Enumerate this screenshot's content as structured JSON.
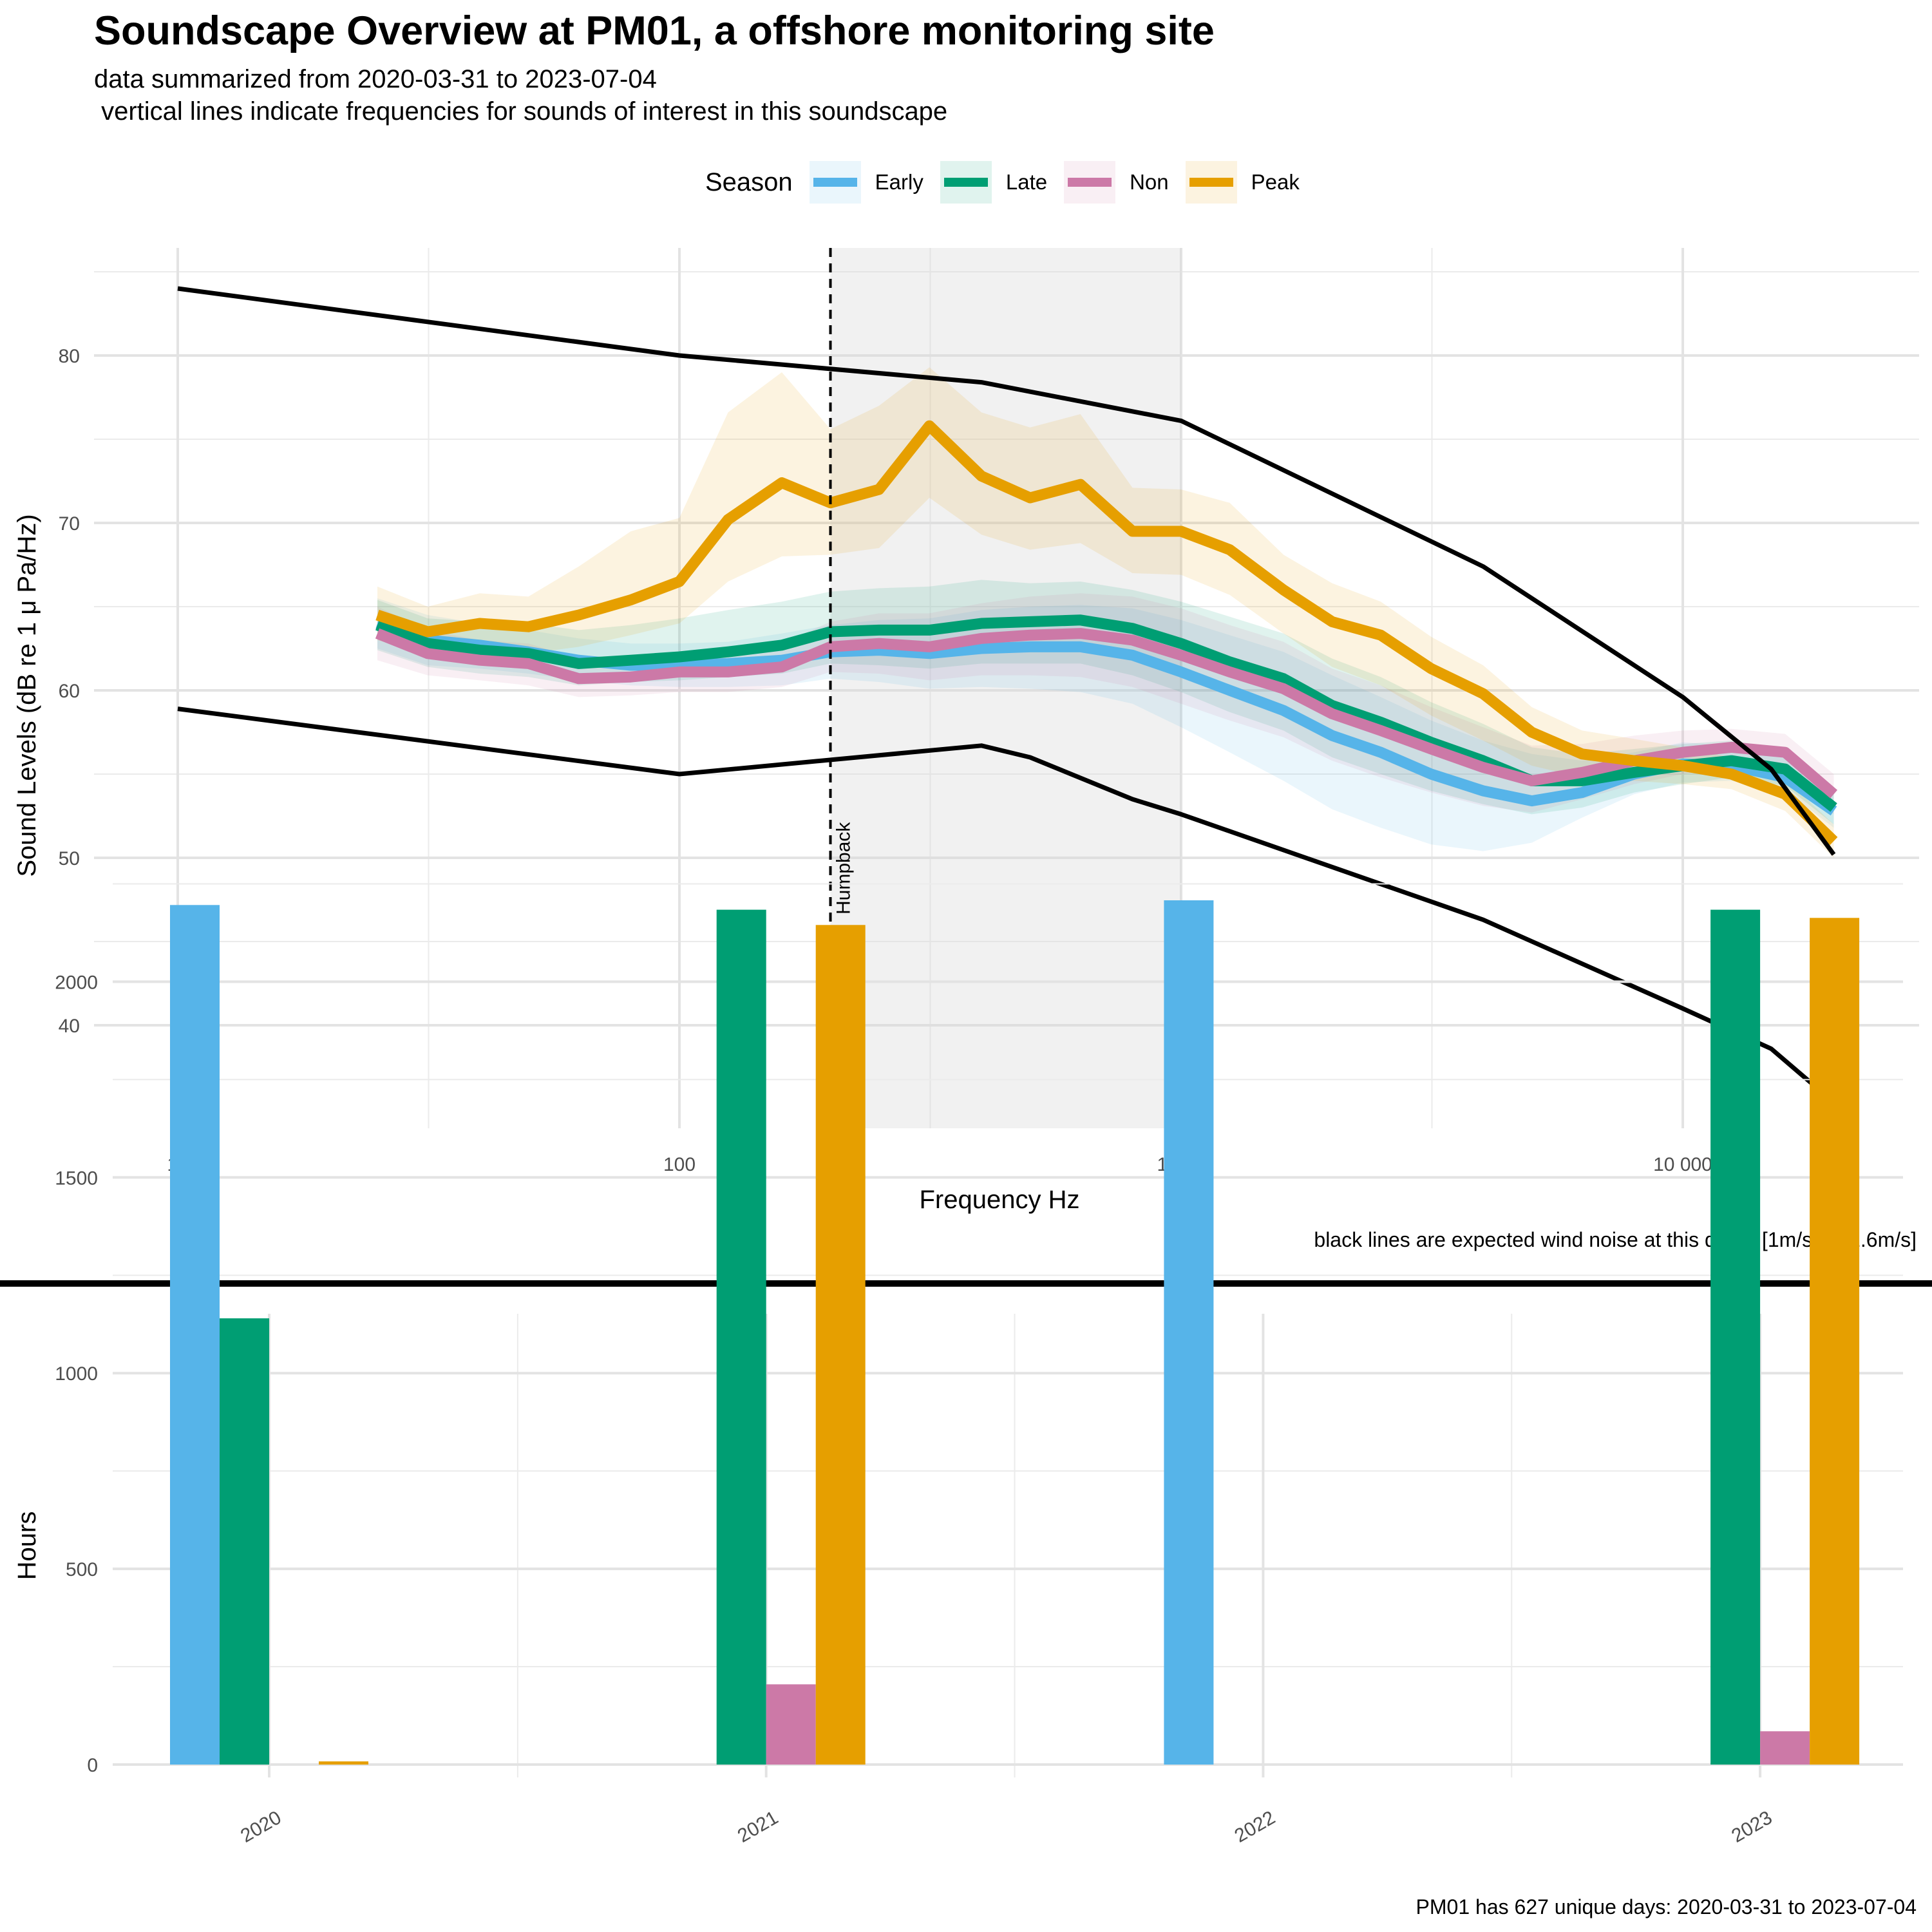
{
  "header": {
    "title": "Soundscape Overview at PM01, a offshore monitoring site",
    "subtitle": "data summarized from 2020-03-31 to 2023-07-04\n vertical lines indicate frequencies for sounds of interest in this soundscape"
  },
  "legend": {
    "title": "Season",
    "items": [
      {
        "label": "Early",
        "color": "#56B4E9"
      },
      {
        "label": "Late",
        "color": "#009E73"
      },
      {
        "label": "Non",
        "color": "#CC79A7"
      },
      {
        "label": "Peak",
        "color": "#E69F00"
      }
    ]
  },
  "chart_data": [
    {
      "type": "line",
      "xlabel": "Frequency Hz",
      "ylabel": "Sound Levels (dB re 1 μ Pa/Hz)",
      "x_scale": "log",
      "xlim": [
        10,
        20000
      ],
      "ylim": [
        35,
        85
      ],
      "x_ticks": [
        {
          "value": 10,
          "label": "10"
        },
        {
          "value": 100,
          "label": "100"
        },
        {
          "value": 1000,
          "label": "1 000"
        },
        {
          "value": 10000,
          "label": "10 000"
        }
      ],
      "y_ticks": [
        {
          "value": 40,
          "label": "40"
        },
        {
          "value": 50,
          "label": "50"
        },
        {
          "value": 60,
          "label": "60"
        },
        {
          "value": 70,
          "label": "70"
        },
        {
          "value": 80,
          "label": "80"
        }
      ],
      "shaded_band": {
        "x_from": 200,
        "x_to": 1000
      },
      "annotations": [
        {
          "x": 200,
          "label": "Humpback",
          "style": "dashed-vertical"
        }
      ],
      "caption": "black lines are expected wind noise at this depth [1m/s & 22.6m/s]",
      "x": [
        25,
        31.5,
        40,
        50,
        63,
        80,
        100,
        125,
        160,
        200,
        250,
        315,
        400,
        500,
        630,
        800,
        1000,
        1250,
        1600,
        2000,
        2500,
        3150,
        4000,
        5000,
        6300,
        8000,
        10000,
        12500,
        16000,
        20000
      ],
      "series": [
        {
          "name": "Early",
          "color": "#56B4E9",
          "values": [
            64.0,
            63.0,
            62.7,
            62.3,
            61.8,
            61.5,
            61.5,
            61.6,
            61.8,
            62.3,
            62.4,
            62.2,
            62.5,
            62.6,
            62.6,
            62.1,
            61.1,
            60.0,
            58.8,
            57.3,
            56.3,
            55.0,
            54.0,
            53.4,
            53.9,
            55.0,
            55.6,
            55.5,
            54.8,
            52.8
          ],
          "lower": [
            62.5,
            61.5,
            61.3,
            61.0,
            60.6,
            60.3,
            60.2,
            60.2,
            60.3,
            60.7,
            60.5,
            60.1,
            60.2,
            60.1,
            59.9,
            59.2,
            57.8,
            56.3,
            54.6,
            52.9,
            51.8,
            50.8,
            50.4,
            50.9,
            52.4,
            53.8,
            54.5,
            54.6,
            54.0,
            51.8
          ],
          "upper": [
            65.5,
            64.5,
            64.0,
            63.6,
            63.1,
            62.8,
            62.8,
            62.9,
            63.4,
            63.9,
            64.2,
            64.3,
            64.8,
            65.0,
            65.1,
            64.9,
            64.2,
            63.3,
            62.3,
            60.9,
            59.6,
            58.2,
            57.0,
            56.2,
            55.8,
            56.3,
            56.9,
            56.7,
            56.0,
            54.0
          ]
        },
        {
          "name": "Late",
          "color": "#009E73",
          "values": [
            63.9,
            62.8,
            62.4,
            62.2,
            61.6,
            61.8,
            62.0,
            62.3,
            62.7,
            63.5,
            63.6,
            63.6,
            64.0,
            64.1,
            64.2,
            63.7,
            62.8,
            61.7,
            60.7,
            59.1,
            58.1,
            56.9,
            55.8,
            54.6,
            54.6,
            55.1,
            55.5,
            55.8,
            55.3,
            53.0
          ],
          "lower": [
            62.4,
            61.4,
            61.0,
            60.8,
            60.3,
            60.5,
            60.6,
            60.8,
            61.0,
            61.6,
            61.5,
            61.3,
            61.6,
            61.6,
            61.6,
            60.9,
            59.9,
            58.7,
            57.6,
            56.0,
            55.0,
            54.0,
            53.2,
            52.6,
            53.0,
            53.9,
            54.4,
            54.8,
            54.3,
            52.0
          ],
          "upper": [
            65.4,
            64.3,
            64.1,
            64.0,
            63.6,
            63.9,
            64.3,
            64.8,
            65.3,
            65.9,
            66.1,
            66.2,
            66.6,
            66.4,
            66.5,
            66.0,
            65.3,
            64.4,
            63.4,
            61.9,
            60.8,
            59.3,
            58.0,
            56.6,
            56.2,
            56.5,
            56.8,
            57.0,
            56.5,
            54.0
          ]
        },
        {
          "name": "Non",
          "color": "#CC79A7",
          "values": [
            63.4,
            62.2,
            61.8,
            61.6,
            60.7,
            60.8,
            61.1,
            61.1,
            61.4,
            62.6,
            62.8,
            62.6,
            63.1,
            63.3,
            63.4,
            63.0,
            62.1,
            61.1,
            60.1,
            58.6,
            57.6,
            56.5,
            55.4,
            54.6,
            55.1,
            55.8,
            56.3,
            56.6,
            56.3,
            53.8
          ],
          "lower": [
            61.8,
            60.9,
            60.6,
            60.3,
            59.6,
            59.7,
            59.9,
            59.9,
            60.2,
            61.1,
            61.0,
            60.6,
            60.9,
            60.9,
            60.8,
            60.2,
            59.2,
            58.2,
            57.2,
            55.8,
            54.8,
            53.9,
            53.1,
            52.7,
            53.5,
            54.4,
            55.0,
            55.4,
            55.1,
            52.6
          ],
          "upper": [
            65.0,
            63.6,
            63.0,
            62.8,
            61.9,
            62.0,
            62.3,
            62.4,
            62.8,
            64.1,
            64.6,
            64.6,
            65.2,
            65.6,
            65.8,
            65.6,
            64.9,
            63.9,
            62.9,
            61.3,
            60.3,
            59.0,
            57.8,
            56.7,
            56.8,
            57.3,
            57.6,
            57.7,
            57.4,
            55.0
          ]
        },
        {
          "name": "Peak",
          "color": "#E69F00",
          "values": [
            64.5,
            63.5,
            64.0,
            63.8,
            64.5,
            65.4,
            66.5,
            70.2,
            72.4,
            71.2,
            72.0,
            75.8,
            72.8,
            71.5,
            72.3,
            69.5,
            69.5,
            68.4,
            66.0,
            64.1,
            63.3,
            61.3,
            59.8,
            57.5,
            56.2,
            55.8,
            55.5,
            55.0,
            53.8,
            51.0
          ],
          "lower": [
            63.0,
            62.2,
            62.4,
            62.2,
            62.6,
            63.3,
            64.0,
            66.5,
            68.0,
            68.1,
            68.5,
            71.5,
            69.3,
            68.4,
            68.8,
            67.0,
            66.9,
            65.7,
            63.4,
            61.4,
            60.3,
            58.5,
            57.0,
            55.5,
            54.8,
            54.6,
            54.4,
            54.1,
            52.8,
            50.0
          ],
          "upper": [
            66.2,
            65.0,
            65.8,
            65.6,
            67.4,
            69.5,
            70.3,
            76.6,
            79.0,
            75.6,
            77.0,
            79.3,
            76.6,
            75.7,
            76.5,
            72.1,
            72.0,
            71.2,
            68.1,
            66.4,
            65.3,
            63.2,
            61.5,
            59.0,
            57.6,
            57.1,
            56.6,
            56.0,
            54.7,
            52.0
          ]
        },
        {
          "name": "",
          "color": "#000000",
          "values": [
            null,
            null,
            null,
            null,
            null,
            null,
            null,
            null,
            null,
            null,
            null,
            null,
            null,
            null,
            null,
            null,
            null,
            null,
            null,
            null,
            null,
            null,
            null,
            null,
            null,
            null,
            null,
            null,
            null,
            null
          ]
        }
      ],
      "wind_noise": [
        {
          "x": [
            10,
            100,
            400,
            1000,
            4000,
            10000,
            15000,
            20000
          ],
          "values": [
            84.0,
            80.0,
            78.4,
            76.1,
            67.4,
            59.6,
            55.3,
            50.2
          ]
        },
        {
          "x": [
            10,
            100,
            400,
            500,
            800,
            1000,
            4000,
            10000,
            15000,
            20000
          ],
          "values": [
            58.9,
            55.0,
            56.7,
            56.0,
            53.5,
            52.6,
            46.3,
            41.0,
            38.6,
            35.4
          ]
        }
      ]
    },
    {
      "type": "bar",
      "ylabel": "Hours",
      "ylim": [
        0,
        2300
      ],
      "categories": [
        "2020",
        "2021",
        "2022",
        "2023"
      ],
      "y_ticks": [
        {
          "value": 0,
          "label": "0"
        },
        {
          "value": 500,
          "label": "500"
        },
        {
          "value": 1000,
          "label": "1000"
        },
        {
          "value": 1500,
          "label": "1500"
        },
        {
          "value": 2000,
          "label": "2000"
        }
      ],
      "caption": "PM01 has 627 unique days: 2020-03-31 to 2023-07-04",
      "series": [
        {
          "name": "Early",
          "color": "#56B4E9",
          "values": [
            2196,
            0,
            2208,
            0
          ]
        },
        {
          "name": "Late",
          "color": "#009E73",
          "values": [
            1140,
            2184,
            0,
            2184
          ]
        },
        {
          "name": "Non",
          "color": "#CC79A7",
          "values": [
            0,
            205,
            0,
            85
          ]
        },
        {
          "name": "Peak",
          "color": "#E69F00",
          "values": [
            8,
            2145,
            0,
            2163
          ]
        }
      ]
    }
  ]
}
